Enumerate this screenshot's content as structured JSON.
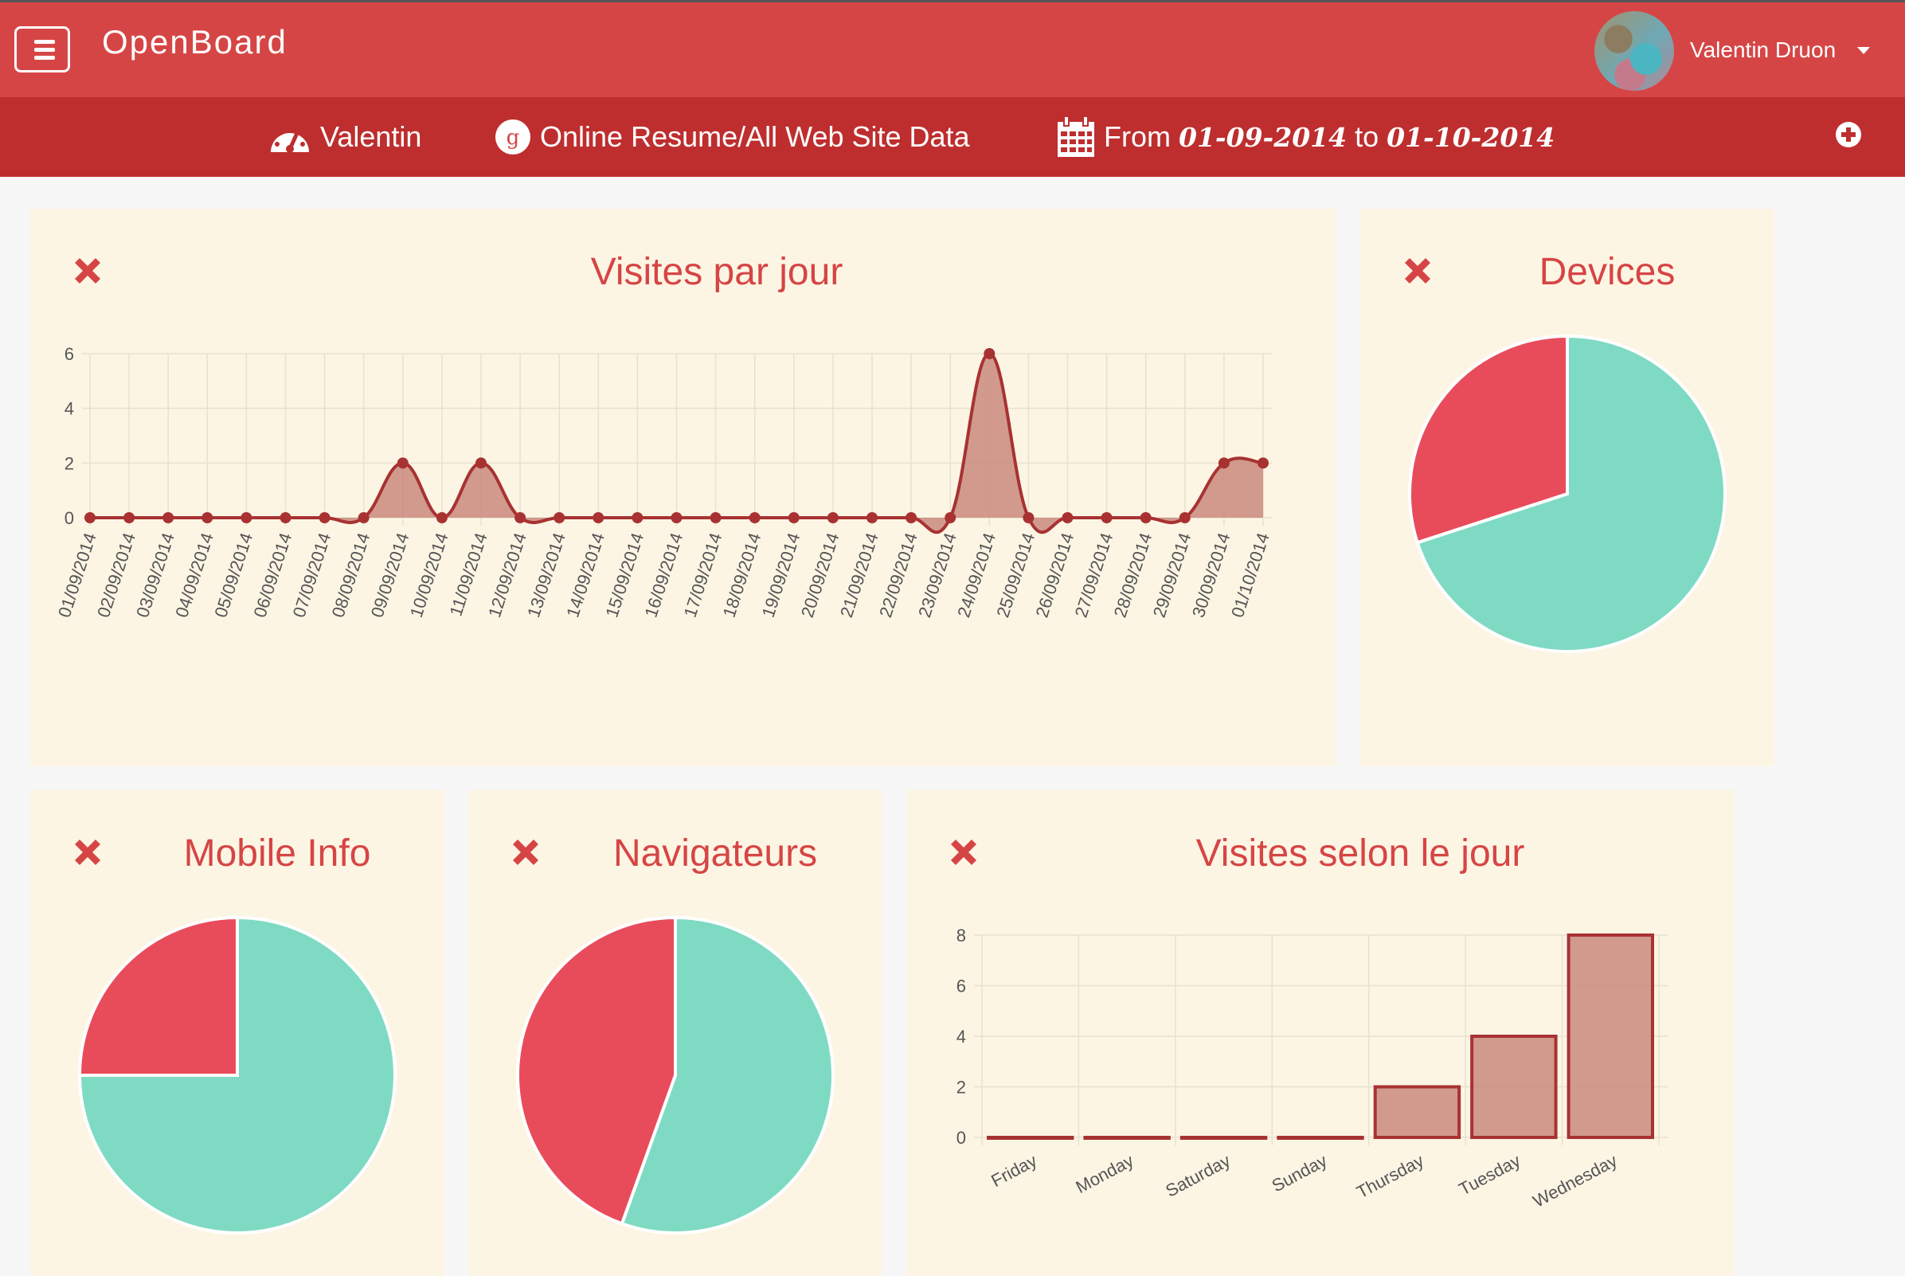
{
  "header": {
    "app_title": "OpenBoard",
    "user_name": "Valentin Druon"
  },
  "subbar": {
    "account": "Valentin",
    "property": "Online Resume/All Web Site Data",
    "from_label": "From",
    "date_from": "01-09-2014",
    "to_label": "to",
    "date_to": "01-10-2014"
  },
  "colors": {
    "header": "#d64545",
    "subbar": "#be2e2e",
    "panel_bg": "#fdf5e4",
    "accent_text": "#d64545",
    "line": "#a83232",
    "fill": "#c98a7e",
    "pie_teal": "#7fdac3",
    "pie_red": "#e84c5b"
  },
  "panels": {
    "visits_per_day": {
      "title": "Visites par jour"
    },
    "devices": {
      "title": "Devices"
    },
    "mobile_info": {
      "title": "Mobile Info"
    },
    "browsers": {
      "title": "Navigateurs"
    },
    "visits_by_weekday": {
      "title": "Visites selon le jour"
    }
  },
  "chart_data": [
    {
      "id": "visits_per_day",
      "type": "area",
      "title": "Visites par jour",
      "categories": [
        "01/09/2014",
        "02/09/2014",
        "03/09/2014",
        "04/09/2014",
        "05/09/2014",
        "06/09/2014",
        "07/09/2014",
        "08/09/2014",
        "09/09/2014",
        "10/09/2014",
        "11/09/2014",
        "12/09/2014",
        "13/09/2014",
        "14/09/2014",
        "15/09/2014",
        "16/09/2014",
        "17/09/2014",
        "18/09/2014",
        "19/09/2014",
        "20/09/2014",
        "21/09/2014",
        "22/09/2014",
        "23/09/2014",
        "24/09/2014",
        "25/09/2014",
        "26/09/2014",
        "27/09/2014",
        "28/09/2014",
        "29/09/2014",
        "30/09/2014",
        "01/10/2014"
      ],
      "values": [
        0,
        0,
        0,
        0,
        0,
        0,
        0,
        0,
        2,
        0,
        2,
        0,
        0,
        0,
        0,
        0,
        0,
        0,
        0,
        0,
        0,
        0,
        0,
        6,
        0,
        0,
        0,
        0,
        0,
        2,
        2
      ],
      "yticks": [
        0,
        2,
        4,
        6
      ],
      "ylim": [
        0,
        6
      ],
      "grid": true
    },
    {
      "id": "devices",
      "type": "pie",
      "title": "Devices",
      "values": [
        70,
        30
      ]
    },
    {
      "id": "mobile_info",
      "type": "pie",
      "title": "Mobile Info",
      "values": [
        75,
        25
      ]
    },
    {
      "id": "browsers",
      "type": "pie",
      "title": "Navigateurs",
      "values": [
        55.5,
        44.5
      ]
    },
    {
      "id": "visits_by_weekday",
      "type": "bar",
      "title": "Visites selon le jour",
      "categories": [
        "Friday",
        "Monday",
        "Saturday",
        "Sunday",
        "Thursday",
        "Tuesday",
        "Wednesday"
      ],
      "values": [
        0,
        0,
        0,
        0,
        2,
        4,
        8
      ],
      "yticks": [
        0,
        2,
        4,
        6,
        8
      ],
      "ylim": [
        0,
        8
      ],
      "grid": true
    }
  ]
}
